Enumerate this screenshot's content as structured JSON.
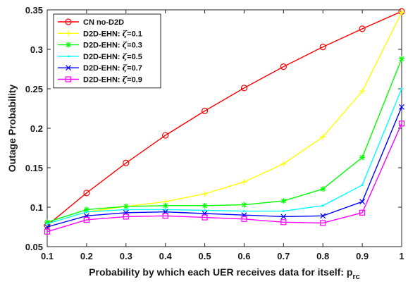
{
  "chart_data": {
    "type": "line",
    "title": "",
    "xlabel": "Probability by which each UER receives data for itself: p",
    "xlabel_sub": "rc",
    "ylabel": "Outage Probability",
    "xlim": [
      0.1,
      1.0
    ],
    "ylim": [
      0.05,
      0.35
    ],
    "xticks": [
      0.1,
      0.2,
      0.3,
      0.4,
      0.5,
      0.6,
      0.7,
      0.8,
      0.9,
      1
    ],
    "xtick_labels": [
      "0.1",
      "0.2",
      "0.3",
      "0.4",
      "0.5",
      "0.6",
      "0.7",
      "0.8",
      "0.9",
      "1"
    ],
    "yticks": [
      0.05,
      0.1,
      0.15,
      0.2,
      0.25,
      0.3,
      0.35
    ],
    "ytick_labels": [
      "0.05",
      "0.1",
      "0.15",
      "0.2",
      "0.25",
      "0.3",
      "0.35"
    ],
    "grid": false,
    "legend_position": "top-left",
    "x": [
      0.1,
      0.2,
      0.3,
      0.4,
      0.5,
      0.6,
      0.7,
      0.8,
      0.9,
      1.0
    ],
    "series": [
      {
        "name": "CN no-D2D",
        "legend_prefix": "CN no-D2D",
        "legend_symbol": "",
        "legend_suffix": "",
        "color": "#ff0000",
        "marker": "circle",
        "values": [
          0.077,
          0.118,
          0.156,
          0.191,
          0.222,
          0.251,
          0.278,
          0.303,
          0.326,
          0.348
        ]
      },
      {
        "name": "D2D-EHN: ζ=0.1",
        "legend_prefix": "D2D-EHN: ",
        "legend_symbol": "ζ",
        "legend_suffix": "=0.1",
        "color": "#ffff00",
        "marker": "plus",
        "values": [
          0.079,
          0.094,
          0.101,
          0.107,
          0.117,
          0.132,
          0.155,
          0.189,
          0.247,
          0.347
        ]
      },
      {
        "name": "D2D-EHN: ζ=0.3",
        "legend_prefix": "D2D-EHN: ",
        "legend_symbol": "ζ",
        "legend_suffix": "=0.3",
        "color": "#00ff00",
        "marker": "asterisk",
        "values": [
          0.081,
          0.097,
          0.101,
          0.102,
          0.102,
          0.103,
          0.108,
          0.123,
          0.163,
          0.288
        ]
      },
      {
        "name": "D2D-EHN: ζ=0.5",
        "legend_prefix": "D2D-EHN: ",
        "legend_symbol": "ζ",
        "legend_suffix": "=0.5",
        "color": "#00ffff",
        "marker": "dot",
        "values": [
          0.079,
          0.094,
          0.097,
          0.097,
          0.096,
          0.095,
          0.095,
          0.102,
          0.128,
          0.25
        ]
      },
      {
        "name": "D2D-EHN: ζ=0.7",
        "legend_prefix": "D2D-EHN: ",
        "legend_symbol": "ζ",
        "legend_suffix": "=0.7",
        "color": "#0000ff",
        "marker": "cross",
        "values": [
          0.075,
          0.089,
          0.093,
          0.094,
          0.092,
          0.09,
          0.088,
          0.089,
          0.107,
          0.227
        ]
      },
      {
        "name": "D2D-EHN: ζ=0.9",
        "legend_prefix": "D2D-EHN: ",
        "legend_symbol": "ζ",
        "legend_suffix": "=0.9",
        "color": "#ff00ff",
        "marker": "square",
        "values": [
          0.069,
          0.084,
          0.088,
          0.089,
          0.087,
          0.085,
          0.081,
          0.08,
          0.093,
          0.206
        ]
      }
    ]
  }
}
